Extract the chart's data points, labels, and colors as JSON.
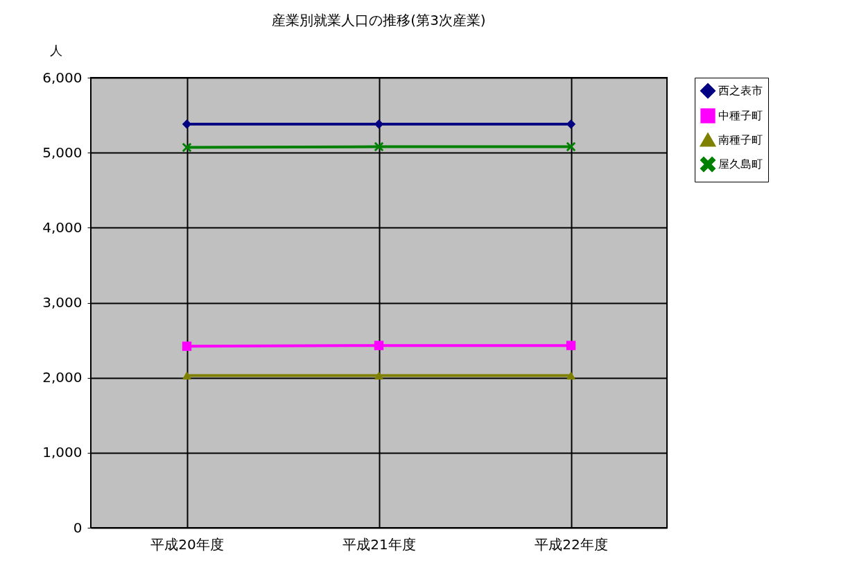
{
  "chart_data": {
    "type": "line",
    "title": "産業別就業人口の推移(第3次産業)",
    "ylabel": "人",
    "categories": [
      "平成20年度",
      "平成21年度",
      "平成22年度"
    ],
    "series": [
      {
        "name": "西之表市",
        "color": "#000080",
        "marker": "diamond",
        "values": [
          5380,
          5380,
          5380
        ]
      },
      {
        "name": "中種子町",
        "color": "#ff00ff",
        "marker": "square",
        "values": [
          2420,
          2430,
          2430
        ]
      },
      {
        "name": "南種子町",
        "color": "#808000",
        "marker": "triangle",
        "values": [
          2030,
          2030,
          2030
        ]
      },
      {
        "name": "屋久島町",
        "color": "#008000",
        "marker": "cross",
        "values": [
          5070,
          5080,
          5080
        ]
      }
    ],
    "ylim": [
      0,
      6000
    ],
    "yticks": [
      0,
      {
        "value": 1000,
        "label": "1,000"
      },
      {
        "value": 2000,
        "label": "2,000"
      },
      {
        "value": 3000,
        "label": "3,000"
      },
      {
        "value": 4000,
        "label": "4,000"
      },
      {
        "value": 5000,
        "label": "5,000"
      },
      {
        "value": 6000,
        "label": "6,000"
      }
    ],
    "grid": true,
    "legend": "right"
  }
}
